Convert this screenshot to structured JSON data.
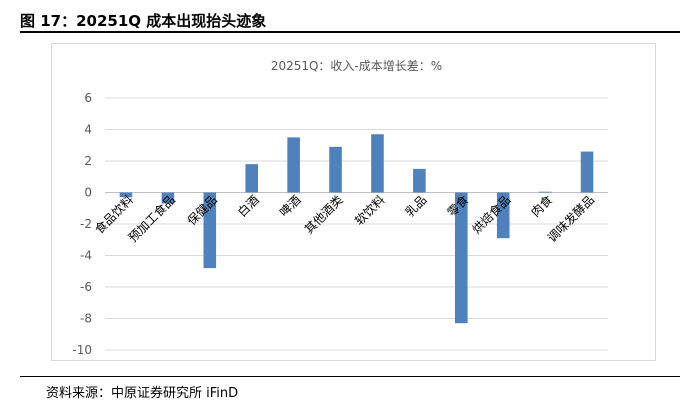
{
  "figure": {
    "title": "图 17：20251Q 成本出现抬头迹象",
    "source": "资料来源：中原证券研究所 iFinD"
  },
  "colors": {
    "bar": "#4f81bd",
    "grid": "#d9d9d9",
    "frame": "#d9d9d9",
    "text": "#595959"
  },
  "chart_data": {
    "type": "bar",
    "title": "20251Q：收入-成本增长差：%",
    "xlabel": "",
    "ylabel": "",
    "categories": [
      "食品饮料",
      "预加工食品",
      "保健品",
      "白酒",
      "啤酒",
      "其他酒类",
      "软饮料",
      "乳品",
      "零食",
      "烘焙食品",
      "肉食",
      "调味发酵品"
    ],
    "values": [
      -0.3,
      -0.7,
      -4.8,
      1.8,
      3.5,
      2.9,
      3.7,
      1.5,
      -8.3,
      -2.9,
      0.05,
      2.6
    ],
    "ylim": [
      -10,
      6
    ],
    "yticks": [
      6,
      4,
      2,
      0,
      -2,
      -4,
      -6,
      -8,
      -10
    ],
    "grid": true,
    "legend": "none"
  }
}
